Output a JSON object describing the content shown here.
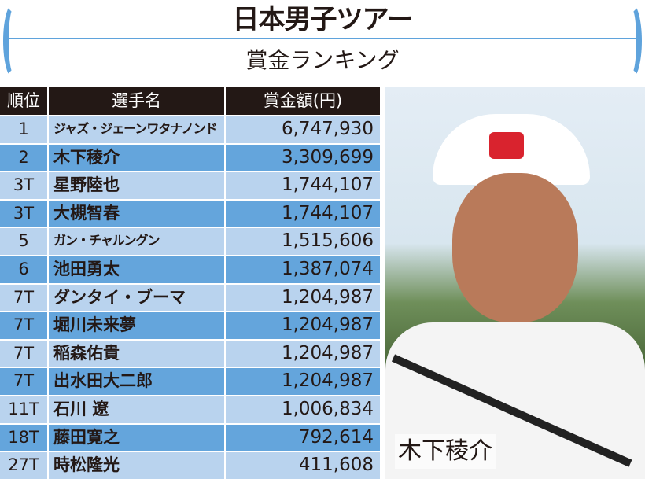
{
  "header": {
    "title": "日本男子ツアー",
    "subtitle": "賞金ランキング"
  },
  "colors": {
    "accent": "#5fa3dc",
    "row_light": "#b9d3ee",
    "row_dark": "#64a5dc",
    "header_bg": "#231815"
  },
  "table": {
    "columns": [
      "順位",
      "選手名",
      "賞金額(円)"
    ],
    "rows": [
      {
        "rank": "1",
        "name": "ジャズ・ジェーンワタナノンド",
        "amount": "6,747,930"
      },
      {
        "rank": "2",
        "name": "木下稜介",
        "amount": "3,309,699"
      },
      {
        "rank": "3T",
        "name": "星野陸也",
        "amount": "1,744,107"
      },
      {
        "rank": "3T",
        "name": "大槻智春",
        "amount": "1,744,107"
      },
      {
        "rank": "5",
        "name": "ガン・チャルングン",
        "amount": "1,515,606"
      },
      {
        "rank": "6",
        "name": "池田勇太",
        "amount": "1,387,074"
      },
      {
        "rank": "7T",
        "name": "ダンタイ・ブーマ",
        "amount": "1,204,987"
      },
      {
        "rank": "7T",
        "name": "堀川未来夢",
        "amount": "1,204,987"
      },
      {
        "rank": "7T",
        "name": "稲森佑貴",
        "amount": "1,204,987"
      },
      {
        "rank": "7T",
        "name": "出水田大二郎",
        "amount": "1,204,987"
      },
      {
        "rank": "11T",
        "name": "石川 遼",
        "amount": "1,006,834"
      },
      {
        "rank": "18T",
        "name": "藤田寛之",
        "amount": "792,614"
      },
      {
        "rank": "27T",
        "name": "時松隆光",
        "amount": "411,608"
      }
    ]
  },
  "photo": {
    "caption": "木下稜介"
  }
}
